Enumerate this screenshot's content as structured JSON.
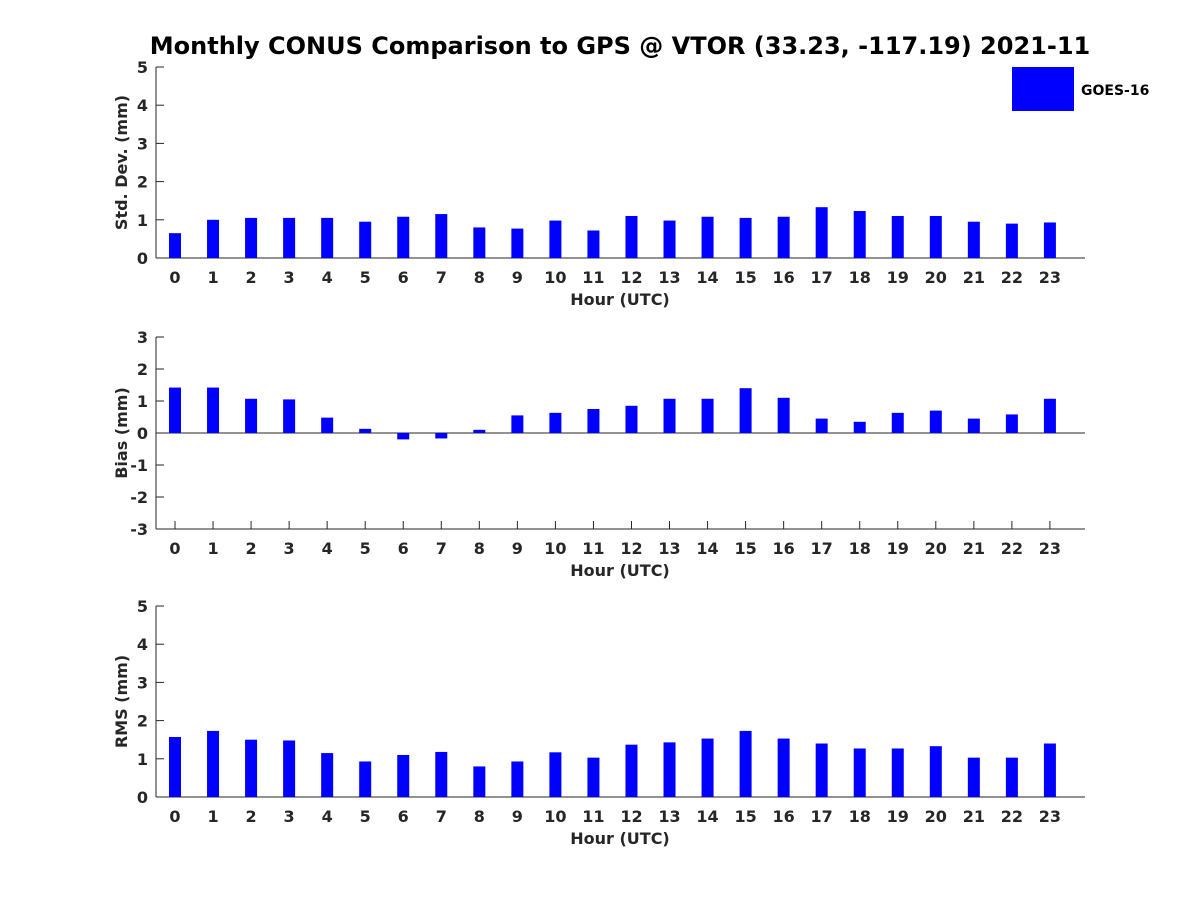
{
  "figure": {
    "title": "Monthly CONUS Comparison to GPS @ VTOR (33.23, -117.19) 2021-11",
    "bar_color": "#0000ff",
    "legend": {
      "label": "GOES-16",
      "placement": "top-right"
    }
  },
  "chart_data": [
    {
      "type": "bar",
      "series": [
        {
          "name": "GOES-16",
          "values": [
            0.65,
            1.0,
            1.05,
            1.05,
            1.05,
            0.95,
            1.08,
            1.15,
            0.8,
            0.77,
            0.98,
            0.72,
            1.1,
            0.98,
            1.08,
            1.05,
            1.08,
            1.33,
            1.23,
            1.1,
            1.1,
            0.95,
            0.9,
            0.93
          ]
        }
      ],
      "categories": [
        "0",
        "1",
        "2",
        "3",
        "4",
        "5",
        "6",
        "7",
        "8",
        "9",
        "10",
        "11",
        "12",
        "13",
        "14",
        "15",
        "16",
        "17",
        "18",
        "19",
        "20",
        "21",
        "22",
        "23"
      ],
      "xlabel": "Hour (UTC)",
      "ylabel": "Std. Dev. (mm)",
      "ylim": [
        0,
        5
      ],
      "yticks": [
        "0",
        "1",
        "2",
        "3",
        "4",
        "5"
      ]
    },
    {
      "type": "bar",
      "series": [
        {
          "name": "GOES-16",
          "values": [
            1.42,
            1.42,
            1.07,
            1.05,
            0.48,
            0.13,
            -0.2,
            -0.17,
            0.1,
            0.55,
            0.63,
            0.75,
            0.85,
            1.07,
            1.07,
            1.4,
            1.1,
            0.45,
            0.35,
            0.63,
            0.7,
            0.45,
            0.58,
            1.07
          ]
        }
      ],
      "categories": [
        "0",
        "1",
        "2",
        "3",
        "4",
        "5",
        "6",
        "7",
        "8",
        "9",
        "10",
        "11",
        "12",
        "13",
        "14",
        "15",
        "16",
        "17",
        "18",
        "19",
        "20",
        "21",
        "22",
        "23"
      ],
      "xlabel": "Hour (UTC)",
      "ylabel": "Bias (mm)",
      "ylim": [
        -3,
        3
      ],
      "yticks": [
        "-3",
        "-2",
        "-1",
        "0",
        "1",
        "2",
        "3"
      ]
    },
    {
      "type": "bar",
      "series": [
        {
          "name": "GOES-16",
          "values": [
            1.57,
            1.73,
            1.5,
            1.48,
            1.15,
            0.93,
            1.1,
            1.18,
            0.8,
            0.93,
            1.17,
            1.03,
            1.37,
            1.43,
            1.53,
            1.73,
            1.53,
            1.4,
            1.27,
            1.27,
            1.33,
            1.03,
            1.03,
            1.4
          ]
        }
      ],
      "categories": [
        "0",
        "1",
        "2",
        "3",
        "4",
        "5",
        "6",
        "7",
        "8",
        "9",
        "10",
        "11",
        "12",
        "13",
        "14",
        "15",
        "16",
        "17",
        "18",
        "19",
        "20",
        "21",
        "22",
        "23"
      ],
      "xlabel": "Hour (UTC)",
      "ylabel": "RMS (mm)",
      "ylim": [
        0,
        5
      ],
      "yticks": [
        "0",
        "1",
        "2",
        "3",
        "4",
        "5"
      ]
    }
  ]
}
